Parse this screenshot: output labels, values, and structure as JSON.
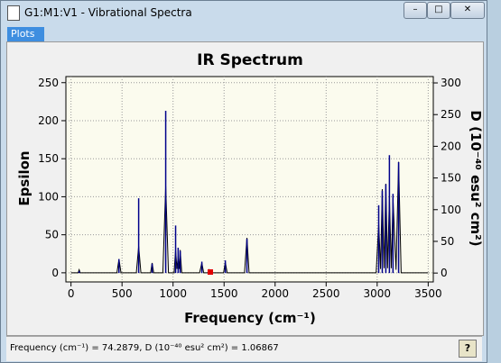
{
  "window": {
    "title": "G1:M1:V1 - Vibrational Spectra",
    "tab": "Plots",
    "status": "Frequency (cm⁻¹) = 74.2879, D (10⁻⁴⁰ esu² cm²) = 1.06867"
  },
  "chart_data": {
    "type": "line",
    "title": "IR Spectrum",
    "xlabel": "Frequency (cm⁻¹)",
    "ylabel": "Epsilon",
    "y2label": "D (10⁻⁴⁰ esu² cm²)",
    "xlim": [
      -50,
      3550
    ],
    "ylim": [
      -12,
      258
    ],
    "y2lim": [
      -14,
      310
    ],
    "xticks": [
      0,
      500,
      1000,
      1500,
      2000,
      2500,
      3000,
      3500
    ],
    "yticks": [
      0,
      50,
      100,
      150,
      200,
      250
    ],
    "y2ticks": [
      0,
      50,
      100,
      150,
      200,
      250,
      300
    ],
    "grid": true,
    "series": [
      {
        "color": "#000000",
        "x": [
          0,
          70,
          80,
          90,
          450,
          470,
          490,
          640,
          663,
          685,
          780,
          795,
          810,
          900,
          928,
          955,
          1010,
          1025,
          1038,
          1050,
          1060,
          1070,
          1085,
          1260,
          1282,
          1300,
          1340,
          1353,
          1365,
          1495,
          1512,
          1530,
          1700,
          1724,
          1745,
          2990,
          3015,
          3033,
          3050,
          3068,
          3085,
          3102,
          3120,
          3138,
          3155,
          3185,
          3210,
          3235,
          3500
        ],
        "values": [
          0,
          0,
          4,
          0,
          0,
          18,
          0,
          0,
          35,
          0,
          0,
          13,
          0,
          0,
          114,
          0,
          0,
          30,
          5,
          22,
          5,
          30,
          0,
          0,
          13,
          0,
          0,
          4,
          0,
          0,
          14,
          0,
          0,
          46,
          0,
          0,
          65,
          5,
          110,
          6,
          117,
          6,
          100,
          6,
          98,
          4,
          146,
          0,
          0
        ]
      },
      {
        "color": "#00008b",
        "axis": "y2",
        "style": "stick",
        "x": [
          80,
          470,
          663,
          795,
          928,
          1025,
          1050,
          1070,
          1282,
          1353,
          1512,
          1724,
          3015,
          3050,
          3085,
          3120,
          3155,
          3210
        ],
        "values": [
          3,
          22,
          118,
          15,
          256,
          75,
          40,
          35,
          18,
          5,
          20,
          54,
          107,
          130,
          140,
          186,
          125,
          175
        ]
      }
    ]
  }
}
